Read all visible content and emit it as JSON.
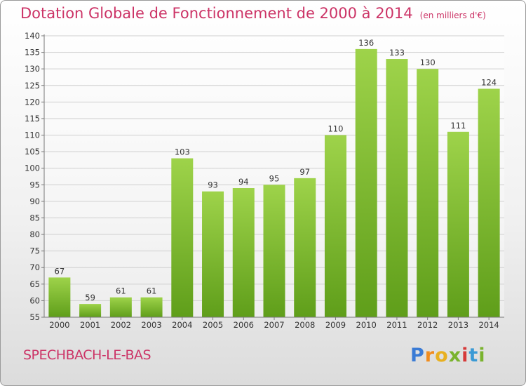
{
  "chart_data": {
    "type": "bar",
    "title": "Dotation Globale de Fonctionnement de 2000 à 2014",
    "unit_label": "(en milliers d'€)",
    "categories": [
      "2000",
      "2001",
      "2002",
      "2003",
      "2004",
      "2005",
      "2006",
      "2007",
      "2008",
      "2009",
      "2010",
      "2011",
      "2012",
      "2013",
      "2014"
    ],
    "values": [
      67,
      59,
      61,
      61,
      103,
      93,
      94,
      95,
      97,
      110,
      136,
      133,
      130,
      111,
      124
    ],
    "ylim": [
      55,
      140
    ],
    "ytick_step": 5,
    "grid": true,
    "bar_color": "#7cbf2f",
    "title_color": "#cc3366"
  },
  "commune_name": "SPECHBACH-LE-BAS",
  "logo_text": "Proxiti"
}
